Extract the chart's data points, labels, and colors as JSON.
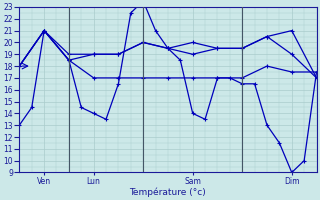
{
  "xlabel": "Température (°c)",
  "background_color": "#cce8e8",
  "grid_color": "#aacccc",
  "line_color": "#0000bb",
  "vline_color": "#445566",
  "ylim": [
    9,
    23
  ],
  "yticks": [
    9,
    10,
    11,
    12,
    13,
    14,
    15,
    16,
    17,
    18,
    19,
    20,
    21,
    22,
    23
  ],
  "xlim": [
    0,
    72
  ],
  "xtick_positions": [
    6,
    18,
    42,
    66
  ],
  "xtick_labels": [
    "Ven",
    "Lun",
    "Sam",
    "Dim"
  ],
  "vline_positions": [
    12,
    30,
    54
  ],
  "series": [
    {
      "x": [
        0,
        3,
        6,
        12,
        15,
        18,
        21,
        24,
        27,
        30,
        33,
        36,
        39,
        42,
        45,
        48,
        51,
        54,
        57,
        60,
        63,
        66,
        69,
        72
      ],
      "y": [
        13,
        14.5,
        21,
        18.5,
        14.5,
        14,
        13.5,
        16.5,
        22.5,
        23.5,
        21,
        19.5,
        18.5,
        14,
        13.5,
        17,
        17,
        16.5,
        16.5,
        13,
        11.5,
        9,
        10,
        17.5
      ]
    },
    {
      "x": [
        0,
        6,
        12,
        18,
        24,
        30,
        36,
        42,
        48,
        54,
        60,
        66,
        72
      ],
      "y": [
        18,
        21,
        19,
        19,
        19,
        20,
        19.5,
        20,
        19.5,
        19.5,
        20.5,
        21,
        17
      ]
    },
    {
      "x": [
        0,
        6,
        12,
        18,
        24,
        30,
        36,
        42,
        48,
        54,
        60,
        66,
        72
      ],
      "y": [
        18,
        21,
        18.5,
        17,
        17,
        17,
        17,
        17,
        17,
        17,
        18,
        17.5,
        17.5
      ]
    },
    {
      "x": [
        0,
        6,
        12,
        18,
        24,
        30,
        36,
        42,
        48,
        54,
        60,
        66,
        72
      ],
      "y": [
        18,
        21,
        18.5,
        19,
        19,
        20,
        19.5,
        19,
        19.5,
        19.5,
        20.5,
        19,
        17
      ]
    }
  ]
}
